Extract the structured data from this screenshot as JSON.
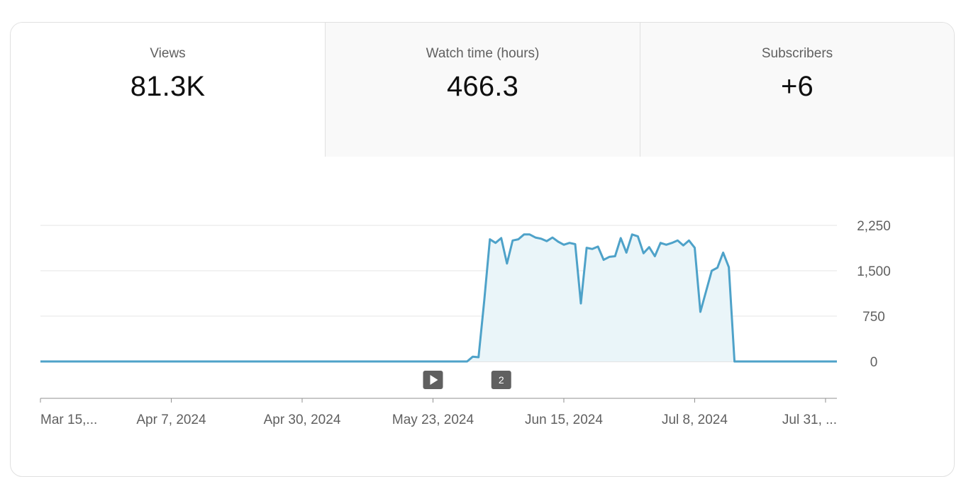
{
  "metric_tabs": [
    {
      "label": "Views",
      "value": "81.3K",
      "selected": true
    },
    {
      "label": "Watch time (hours)",
      "value": "466.3",
      "selected": false
    },
    {
      "label": "Subscribers",
      "value": "+6",
      "selected": false
    }
  ],
  "colors": {
    "line": "#4ea2c9",
    "area": "#eaf5f9",
    "grid": "#e5e5e5",
    "muted_text": "#606060",
    "marker_bg": "#606060"
  },
  "markers": [
    {
      "type": "video-publish",
      "icon": "play-icon",
      "label": "",
      "date": "2024-05-23"
    },
    {
      "type": "video-publish",
      "icon": "",
      "label": "2",
      "date": "2024-06-04"
    }
  ],
  "chart_data": {
    "type": "area",
    "title": "",
    "xlabel": "",
    "ylabel": "",
    "x_range": [
      "2024-03-15",
      "2024-08-02"
    ],
    "ylim": [
      0,
      2250
    ],
    "y_ticks": [
      0,
      750,
      1500,
      2250
    ],
    "y_tick_labels": [
      "0",
      "750",
      "1,500",
      "2,250"
    ],
    "x_tick_labels": [
      "Mar 15,...",
      "Apr 7, 2024",
      "Apr 30, 2024",
      "May 23, 2024",
      "Jun 15, 2024",
      "Jul 8, 2024",
      "Jul 31, ..."
    ],
    "x_tick_dates": [
      "2024-03-15",
      "2024-04-07",
      "2024-04-30",
      "2024-05-23",
      "2024-06-15",
      "2024-07-08",
      "2024-07-31"
    ],
    "grid": true,
    "y_axis_position": "right",
    "series": [
      {
        "points": [
          [
            "2024-03-15",
            0
          ],
          [
            "2024-05-29",
            0
          ],
          [
            "2024-05-30",
            80
          ],
          [
            "2024-05-31",
            70
          ],
          [
            "2024-06-01",
            1000
          ],
          [
            "2024-06-02",
            2020
          ],
          [
            "2024-06-03",
            1960
          ],
          [
            "2024-06-04",
            2040
          ],
          [
            "2024-06-05",
            1620
          ],
          [
            "2024-06-06",
            2000
          ],
          [
            "2024-06-07",
            2020
          ],
          [
            "2024-06-08",
            2100
          ],
          [
            "2024-06-09",
            2100
          ],
          [
            "2024-06-10",
            2050
          ],
          [
            "2024-06-11",
            2030
          ],
          [
            "2024-06-12",
            1990
          ],
          [
            "2024-06-13",
            2050
          ],
          [
            "2024-06-14",
            1980
          ],
          [
            "2024-06-15",
            1930
          ],
          [
            "2024-06-16",
            1960
          ],
          [
            "2024-06-17",
            1940
          ],
          [
            "2024-06-18",
            960
          ],
          [
            "2024-06-19",
            1880
          ],
          [
            "2024-06-20",
            1860
          ],
          [
            "2024-06-21",
            1900
          ],
          [
            "2024-06-22",
            1680
          ],
          [
            "2024-06-23",
            1730
          ],
          [
            "2024-06-24",
            1740
          ],
          [
            "2024-06-25",
            2040
          ],
          [
            "2024-06-26",
            1800
          ],
          [
            "2024-06-27",
            2100
          ],
          [
            "2024-06-28",
            2070
          ],
          [
            "2024-06-29",
            1790
          ],
          [
            "2024-06-30",
            1890
          ],
          [
            "2024-07-01",
            1740
          ],
          [
            "2024-07-02",
            1960
          ],
          [
            "2024-07-03",
            1930
          ],
          [
            "2024-07-04",
            1960
          ],
          [
            "2024-07-05",
            2000
          ],
          [
            "2024-07-06",
            1920
          ],
          [
            "2024-07-07",
            2000
          ],
          [
            "2024-07-08",
            1880
          ],
          [
            "2024-07-09",
            820
          ],
          [
            "2024-07-11",
            1500
          ],
          [
            "2024-07-12",
            1550
          ],
          [
            "2024-07-13",
            1800
          ],
          [
            "2024-07-14",
            1560
          ],
          [
            "2024-07-15",
            0
          ],
          [
            "2024-08-02",
            0
          ]
        ]
      }
    ]
  }
}
